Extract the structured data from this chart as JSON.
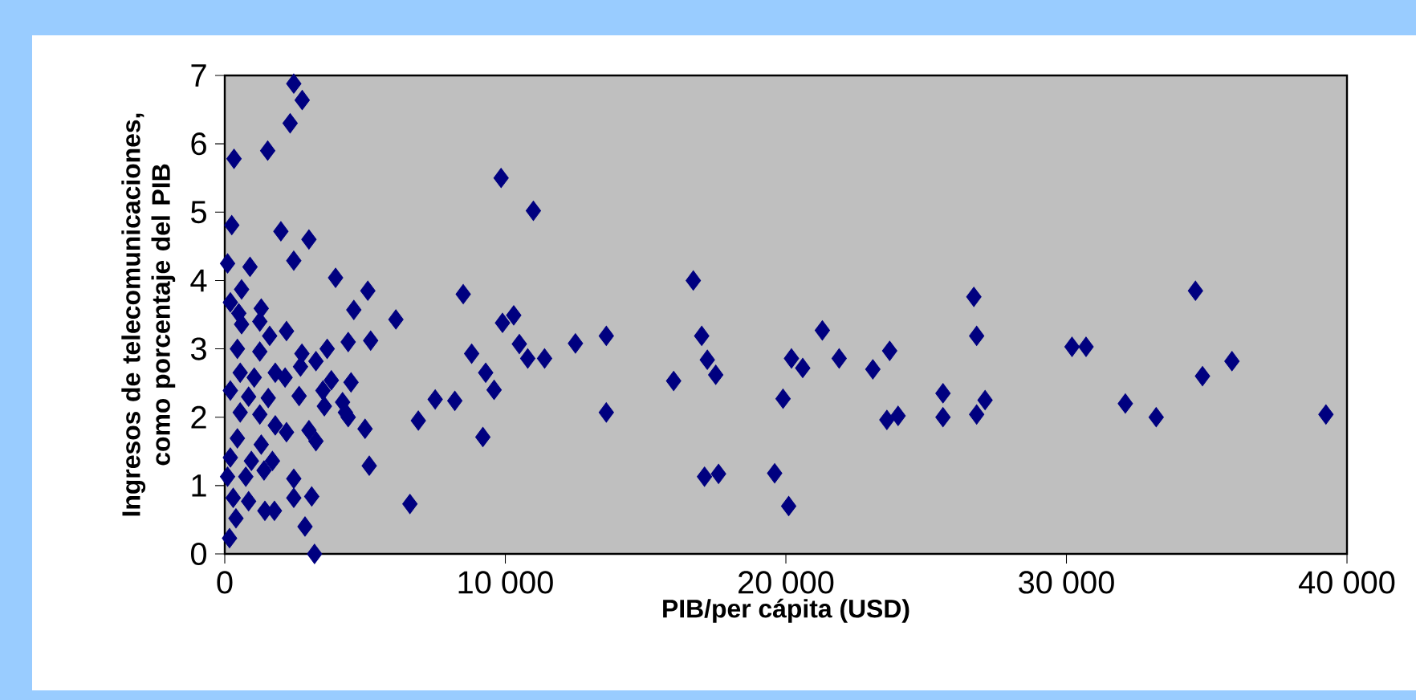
{
  "chart_data": {
    "type": "scatter",
    "xlabel": "PIB/per cápita (USD)",
    "ylabel": "Ingresos de telecomunicaciones, como porcentaje del PIB",
    "xlim": [
      0,
      40000
    ],
    "ylim": [
      0,
      7
    ],
    "xticks": [
      0,
      {
        "value": 10000,
        "label": "10 000"
      },
      {
        "value": 20000,
        "label": "20 000"
      },
      {
        "value": 30000,
        "label": "30 000"
      },
      {
        "value": 40000,
        "label": "40 000"
      }
    ],
    "yticks": [
      0,
      1,
      2,
      3,
      4,
      5,
      6,
      7
    ],
    "marker": "diamond",
    "series": [
      {
        "color": "#000080",
        "x": [
          39250,
          34600,
          34850,
          35900,
          32100,
          33200,
          30200,
          30700,
          26700,
          26800,
          25600,
          25600,
          26800,
          27100,
          23700,
          23100,
          21900,
          21300,
          20600,
          20200,
          19900,
          19600,
          20100,
          23600,
          24000,
          16700,
          17000,
          17200,
          17500,
          17100,
          17600,
          16000,
          13600,
          13600,
          12500,
          11400,
          10800,
          10500,
          10300,
          9900,
          9850,
          11000,
          9300,
          9600,
          8800,
          8500,
          9200,
          8200,
          7500,
          6900,
          6600,
          6100,
          2460,
          2760,
          2330,
          1530,
          330,
          250,
          2000,
          3000,
          2460,
          100,
          900,
          3950,
          5100,
          4600,
          600,
          200,
          500,
          1300,
          1250,
          600,
          2200,
          1600,
          450,
          1250,
          2750,
          3650,
          4400,
          5200,
          3250,
          2700,
          550,
          1800,
          1050,
          2150,
          3800,
          4500,
          200,
          2650,
          3500,
          850,
          1550,
          4200,
          550,
          1250,
          3550,
          4300,
          4400,
          1800,
          2200,
          3000,
          3250,
          5000,
          450,
          1300,
          200,
          950,
          1700,
          5150,
          100,
          750,
          1400,
          2460,
          300,
          850,
          2460,
          3100,
          1430,
          1770,
          400,
          2860,
          170,
          3200
        ],
        "values": [
          2.04,
          3.85,
          2.6,
          2.82,
          2.2,
          2.0,
          3.03,
          3.03,
          3.76,
          3.19,
          2.35,
          2.0,
          2.04,
          2.25,
          2.97,
          2.7,
          2.86,
          3.27,
          2.72,
          2.86,
          2.27,
          1.18,
          0.7,
          1.96,
          2.02,
          4.0,
          3.19,
          2.84,
          2.62,
          1.13,
          1.17,
          2.53,
          3.19,
          2.07,
          3.08,
          2.86,
          2.86,
          3.07,
          3.49,
          3.38,
          5.5,
          5.02,
          2.65,
          2.4,
          2.93,
          3.8,
          1.71,
          2.24,
          2.26,
          1.95,
          0.73,
          3.43,
          6.88,
          6.64,
          6.3,
          5.9,
          5.78,
          4.81,
          4.72,
          4.6,
          4.29,
          4.25,
          4.2,
          4.04,
          3.85,
          3.57,
          3.87,
          3.68,
          3.52,
          3.59,
          3.4,
          3.36,
          3.26,
          3.19,
          3.0,
          2.96,
          2.93,
          3.0,
          3.1,
          3.12,
          2.82,
          2.74,
          2.65,
          2.65,
          2.58,
          2.58,
          2.54,
          2.51,
          2.39,
          2.31,
          2.39,
          2.3,
          2.28,
          2.22,
          2.07,
          2.04,
          2.16,
          2.07,
          2.0,
          1.88,
          1.78,
          1.81,
          1.65,
          1.83,
          1.69,
          1.6,
          1.41,
          1.36,
          1.36,
          1.29,
          1.13,
          1.13,
          1.22,
          1.1,
          0.82,
          0.77,
          0.82,
          0.84,
          0.63,
          0.63,
          0.52,
          0.4,
          0.23,
          0.0
        ]
      }
    ]
  }
}
